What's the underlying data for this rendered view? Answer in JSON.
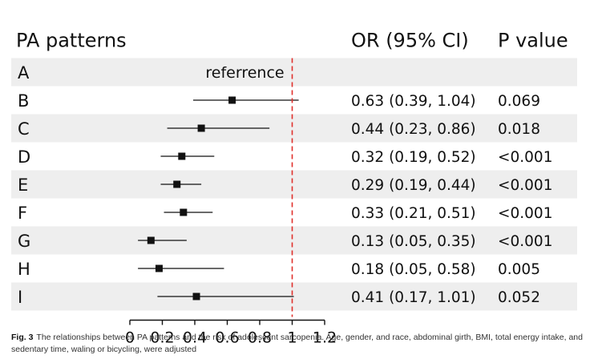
{
  "chart_data": {
    "type": "forest",
    "headers": {
      "label_col": "PA patterns",
      "or_col": "OR (95% CI)",
      "p_col": "P value"
    },
    "reference_label": "referrence",
    "rows": [
      {
        "group": "A",
        "reference": true,
        "or": null,
        "lo": null,
        "hi": null,
        "or_text": "",
        "p": ""
      },
      {
        "group": "B",
        "reference": false,
        "or": 0.63,
        "lo": 0.39,
        "hi": 1.04,
        "or_text": "0.63 (0.39, 1.04)",
        "p": "0.069"
      },
      {
        "group": "C",
        "reference": false,
        "or": 0.44,
        "lo": 0.23,
        "hi": 0.86,
        "or_text": "0.44 (0.23, 0.86)",
        "p": "0.018"
      },
      {
        "group": "D",
        "reference": false,
        "or": 0.32,
        "lo": 0.19,
        "hi": 0.52,
        "or_text": "0.32 (0.19, 0.52)",
        "p": "<0.001"
      },
      {
        "group": "E",
        "reference": false,
        "or": 0.29,
        "lo": 0.19,
        "hi": 0.44,
        "or_text": "0.29 (0.19, 0.44)",
        "p": "<0.001"
      },
      {
        "group": "F",
        "reference": false,
        "or": 0.33,
        "lo": 0.21,
        "hi": 0.51,
        "or_text": "0.33 (0.21, 0.51)",
        "p": "<0.001"
      },
      {
        "group": "G",
        "reference": false,
        "or": 0.13,
        "lo": 0.05,
        "hi": 0.35,
        "or_text": "0.13 (0.05, 0.35)",
        "p": "<0.001"
      },
      {
        "group": "H",
        "reference": false,
        "or": 0.18,
        "lo": 0.05,
        "hi": 0.58,
        "or_text": "0.18 (0.05, 0.58)",
        "p": "0.005"
      },
      {
        "group": "I",
        "reference": false,
        "or": 0.41,
        "lo": 0.17,
        "hi": 1.01,
        "or_text": "0.41 (0.17, 1.01)",
        "p": "0.052"
      }
    ],
    "x_ticks": [
      0,
      0.2,
      0.4,
      0.6,
      0.8,
      1,
      1.2
    ],
    "x_tick_labels": [
      "0",
      "0.2",
      "0.4",
      "0.6",
      "0.8",
      "1",
      "1.2"
    ],
    "xlim": [
      0,
      1.2
    ],
    "reference_line": 1,
    "colors": {
      "reference_line": "#e0302b",
      "row_shade": "#eeeeee",
      "marker": "#111111"
    }
  },
  "caption": {
    "label": "Fig. 3",
    "text": "The relationships between PA patterns and the risk of adolescent sarcopenia. Age, gender, and race, abdominal girth, BMI, total energy intake, and sedentary time, waling or bicycling, were adjusted"
  }
}
